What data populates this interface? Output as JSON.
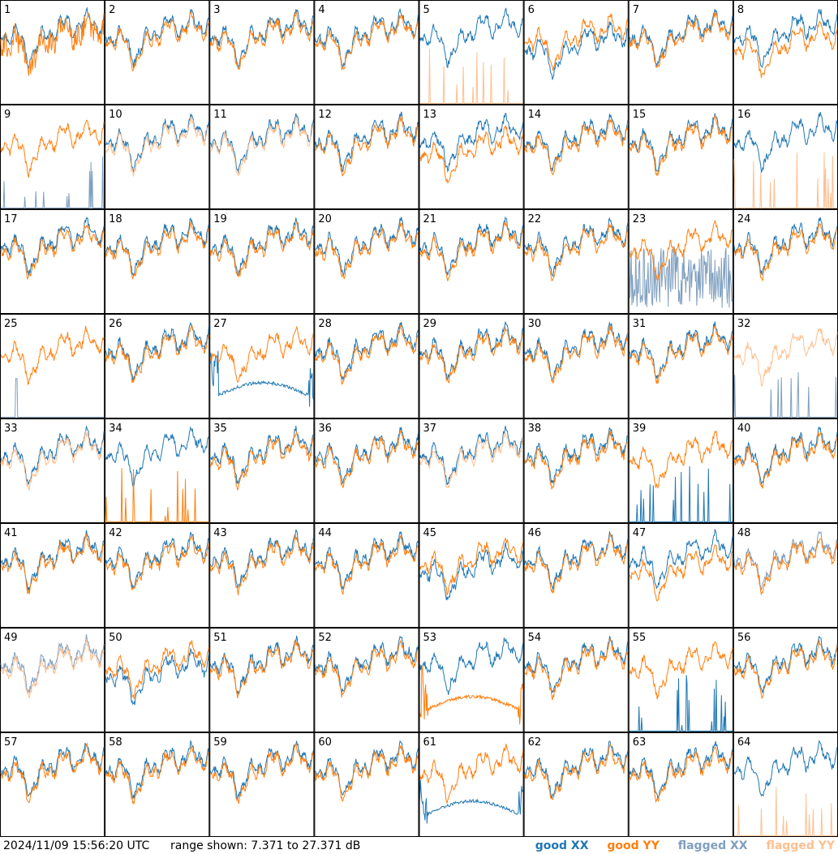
{
  "footer": {
    "timestamp": "2024/11/09 15:56:20 UTC",
    "range_label": "range shown: 7.371 to 27.371 dB"
  },
  "legend": [
    {
      "label": "good XX",
      "color": "#1f77b4"
    },
    {
      "label": "good YY",
      "color": "#ff7f0e"
    },
    {
      "label": "flagged XX",
      "color": "#7f9fbf"
    },
    {
      "label": "flagged YY",
      "color": "#ffbf8f"
    }
  ],
  "chart_data": {
    "type": "line",
    "grid_rows": 8,
    "grid_cols": 8,
    "ylim": [
      7.371,
      27.371
    ],
    "yunit": "dB",
    "panels": [
      {
        "id": "1",
        "xx": "good",
        "yy": "good",
        "xx_kind": "normal",
        "yy_kind": "noisy"
      },
      {
        "id": "2",
        "xx": "good",
        "yy": "good",
        "xx_kind": "normal",
        "yy_kind": "normal"
      },
      {
        "id": "3",
        "xx": "good",
        "yy": "good",
        "xx_kind": "normal",
        "yy_kind": "normal"
      },
      {
        "id": "4",
        "xx": "good",
        "yy": "good",
        "xx_kind": "normal",
        "yy_kind": "normal"
      },
      {
        "id": "5",
        "xx": "good",
        "yy": "flagged",
        "xx_kind": "normal",
        "yy_kind": "spikes"
      },
      {
        "id": "6",
        "xx": "good",
        "yy": "good",
        "xx_kind": "low",
        "yy_kind": "normal"
      },
      {
        "id": "7",
        "xx": "good",
        "yy": "good",
        "xx_kind": "normal",
        "yy_kind": "normal"
      },
      {
        "id": "8",
        "xx": "good",
        "yy": "good",
        "xx_kind": "normal",
        "yy_kind": "low"
      },
      {
        "id": "9",
        "xx": "flagged",
        "yy": "good",
        "xx_kind": "spikes",
        "yy_kind": "normal"
      },
      {
        "id": "10",
        "xx": "good",
        "yy": "flagged",
        "xx_kind": "normal",
        "yy_kind": "normal"
      },
      {
        "id": "11",
        "xx": "good",
        "yy": "flagged",
        "xx_kind": "normal",
        "yy_kind": "normal"
      },
      {
        "id": "12",
        "xx": "good",
        "yy": "good",
        "xx_kind": "normal",
        "yy_kind": "normal"
      },
      {
        "id": "13",
        "xx": "good",
        "yy": "good",
        "xx_kind": "normal",
        "yy_kind": "low"
      },
      {
        "id": "14",
        "xx": "good",
        "yy": "good",
        "xx_kind": "normal",
        "yy_kind": "normal"
      },
      {
        "id": "15",
        "xx": "good",
        "yy": "good",
        "xx_kind": "normal",
        "yy_kind": "normal"
      },
      {
        "id": "16",
        "xx": "good",
        "yy": "flagged",
        "xx_kind": "normal",
        "yy_kind": "spikes"
      },
      {
        "id": "17",
        "xx": "good",
        "yy": "good",
        "xx_kind": "normal",
        "yy_kind": "normal"
      },
      {
        "id": "18",
        "xx": "good",
        "yy": "good",
        "xx_kind": "normal",
        "yy_kind": "normal"
      },
      {
        "id": "19",
        "xx": "good",
        "yy": "good",
        "xx_kind": "normal",
        "yy_kind": "normal"
      },
      {
        "id": "20",
        "xx": "good",
        "yy": "good",
        "xx_kind": "normal",
        "yy_kind": "normal"
      },
      {
        "id": "21",
        "xx": "good",
        "yy": "good",
        "xx_kind": "normal",
        "yy_kind": "normal"
      },
      {
        "id": "22",
        "xx": "good",
        "yy": "good",
        "xx_kind": "normal",
        "yy_kind": "normal"
      },
      {
        "id": "23",
        "xx": "flagged",
        "yy": "good",
        "xx_kind": "bursty",
        "yy_kind": "normal"
      },
      {
        "id": "24",
        "xx": "good",
        "yy": "good",
        "xx_kind": "normal",
        "yy_kind": "normal"
      },
      {
        "id": "25",
        "xx": "flagged",
        "yy": "good",
        "xx_kind": "spike1",
        "yy_kind": "normal"
      },
      {
        "id": "26",
        "xx": "good",
        "yy": "good",
        "xx_kind": "normal",
        "yy_kind": "normal"
      },
      {
        "id": "27",
        "xx": "good",
        "yy": "good",
        "xx_kind": "dip",
        "yy_kind": "normal"
      },
      {
        "id": "28",
        "xx": "good",
        "yy": "good",
        "xx_kind": "normal",
        "yy_kind": "normal"
      },
      {
        "id": "29",
        "xx": "good",
        "yy": "good",
        "xx_kind": "normal",
        "yy_kind": "normal"
      },
      {
        "id": "30",
        "xx": "good",
        "yy": "good",
        "xx_kind": "normal",
        "yy_kind": "normal"
      },
      {
        "id": "31",
        "xx": "good",
        "yy": "good",
        "xx_kind": "normal",
        "yy_kind": "normal"
      },
      {
        "id": "32",
        "xx": "flagged",
        "yy": "flagged",
        "xx_kind": "spikes",
        "yy_kind": "normal"
      },
      {
        "id": "33",
        "xx": "good",
        "yy": "flagged",
        "xx_kind": "normal",
        "yy_kind": "normal"
      },
      {
        "id": "34",
        "xx": "good",
        "yy": "good",
        "xx_kind": "normal",
        "yy_kind": "spikes"
      },
      {
        "id": "35",
        "xx": "good",
        "yy": "good",
        "xx_kind": "normal",
        "yy_kind": "normal"
      },
      {
        "id": "36",
        "xx": "good",
        "yy": "good",
        "xx_kind": "normal",
        "yy_kind": "normal"
      },
      {
        "id": "37",
        "xx": "good",
        "yy": "flagged",
        "xx_kind": "normal",
        "yy_kind": "normal"
      },
      {
        "id": "38",
        "xx": "good",
        "yy": "good",
        "xx_kind": "normal",
        "yy_kind": "normal"
      },
      {
        "id": "39",
        "xx": "good",
        "yy": "good",
        "xx_kind": "spikes",
        "yy_kind": "normal"
      },
      {
        "id": "40",
        "xx": "good",
        "yy": "good",
        "xx_kind": "normal",
        "yy_kind": "normal"
      },
      {
        "id": "41",
        "xx": "good",
        "yy": "good",
        "xx_kind": "normal",
        "yy_kind": "normal"
      },
      {
        "id": "42",
        "xx": "good",
        "yy": "good",
        "xx_kind": "normal",
        "yy_kind": "normal"
      },
      {
        "id": "43",
        "xx": "good",
        "yy": "good",
        "xx_kind": "normal",
        "yy_kind": "normal"
      },
      {
        "id": "44",
        "xx": "good",
        "yy": "good",
        "xx_kind": "normal",
        "yy_kind": "normal"
      },
      {
        "id": "45",
        "xx": "good",
        "yy": "good",
        "xx_kind": "low",
        "yy_kind": "normal"
      },
      {
        "id": "46",
        "xx": "good",
        "yy": "good",
        "xx_kind": "normal",
        "yy_kind": "normal"
      },
      {
        "id": "47",
        "xx": "good",
        "yy": "good",
        "xx_kind": "normal",
        "yy_kind": "low"
      },
      {
        "id": "48",
        "xx": "flagged",
        "yy": "good",
        "xx_kind": "normal",
        "yy_kind": "normal"
      },
      {
        "id": "49",
        "xx": "flagged",
        "yy": "flagged",
        "xx_kind": "normal",
        "yy_kind": "normal"
      },
      {
        "id": "50",
        "xx": "good",
        "yy": "good",
        "xx_kind": "low",
        "yy_kind": "normal"
      },
      {
        "id": "51",
        "xx": "good",
        "yy": "good",
        "xx_kind": "normal",
        "yy_kind": "normal"
      },
      {
        "id": "52",
        "xx": "good",
        "yy": "good",
        "xx_kind": "normal",
        "yy_kind": "normal"
      },
      {
        "id": "53",
        "xx": "good",
        "yy": "good",
        "xx_kind": "normal",
        "yy_kind": "dip"
      },
      {
        "id": "54",
        "xx": "good",
        "yy": "good",
        "xx_kind": "normal",
        "yy_kind": "normal"
      },
      {
        "id": "55",
        "xx": "good",
        "yy": "good",
        "xx_kind": "spikes",
        "yy_kind": "normal"
      },
      {
        "id": "56",
        "xx": "good",
        "yy": "good",
        "xx_kind": "normal",
        "yy_kind": "normal"
      },
      {
        "id": "57",
        "xx": "good",
        "yy": "good",
        "xx_kind": "normal",
        "yy_kind": "normal"
      },
      {
        "id": "58",
        "xx": "good",
        "yy": "good",
        "xx_kind": "normal",
        "yy_kind": "normal"
      },
      {
        "id": "59",
        "xx": "good",
        "yy": "good",
        "xx_kind": "normal",
        "yy_kind": "normal"
      },
      {
        "id": "60",
        "xx": "good",
        "yy": "good",
        "xx_kind": "normal",
        "yy_kind": "normal"
      },
      {
        "id": "61",
        "xx": "good",
        "yy": "good",
        "xx_kind": "dip",
        "yy_kind": "normal"
      },
      {
        "id": "62",
        "xx": "good",
        "yy": "good",
        "xx_kind": "normal",
        "yy_kind": "normal"
      },
      {
        "id": "63",
        "xx": "good",
        "yy": "good",
        "xx_kind": "normal",
        "yy_kind": "normal"
      },
      {
        "id": "64",
        "xx": "good",
        "yy": "flagged",
        "xx_kind": "normal",
        "yy_kind": "spikes"
      }
    ]
  }
}
